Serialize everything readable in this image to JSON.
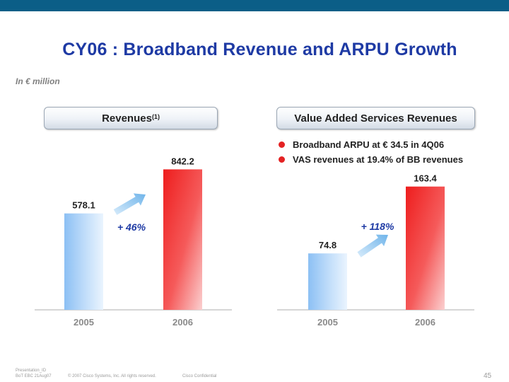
{
  "title": "CY06 : Broadband Revenue and ARPU Growth",
  "subtitle": "In € million",
  "left_panel": {
    "header": "Revenues",
    "header_sup": "(1)"
  },
  "right_panel": {
    "header": "Value Added Services Revenues",
    "bullets": [
      "Broadband ARPU at € 34.5 in 4Q06",
      "VAS revenues at 19.4% of BB revenues"
    ]
  },
  "colors": {
    "bar_2005": "#9ec9f5",
    "bar_2006": "#ee3a3a",
    "arrow": "#7fbbe8",
    "growth_text": "#1e3aa4"
  },
  "chart_data": [
    {
      "type": "bar",
      "title": "Revenues",
      "categories": [
        "2005",
        "2006"
      ],
      "values": [
        578.1,
        842.2
      ],
      "value_labels": [
        "578.1",
        "842.2"
      ],
      "growth_label": "+ 46%",
      "ylim": [
        0,
        950
      ],
      "unit": "€ million"
    },
    {
      "type": "bar",
      "title": "Value Added Services Revenues",
      "categories": [
        "2005",
        "2006"
      ],
      "values": [
        74.8,
        163.4
      ],
      "value_labels": [
        "74.8",
        "163.4"
      ],
      "growth_label": "+ 118%",
      "ylim": [
        0,
        210
      ],
      "unit": "€ million"
    }
  ],
  "footer": {
    "left": "Presentation_ID",
    "left2": "BoT EBC 21Aug07",
    "copyright": "© 2007 Cisco Systems, Inc. All rights reserved.",
    "confidential": "Cisco Confidential",
    "page": "45"
  }
}
